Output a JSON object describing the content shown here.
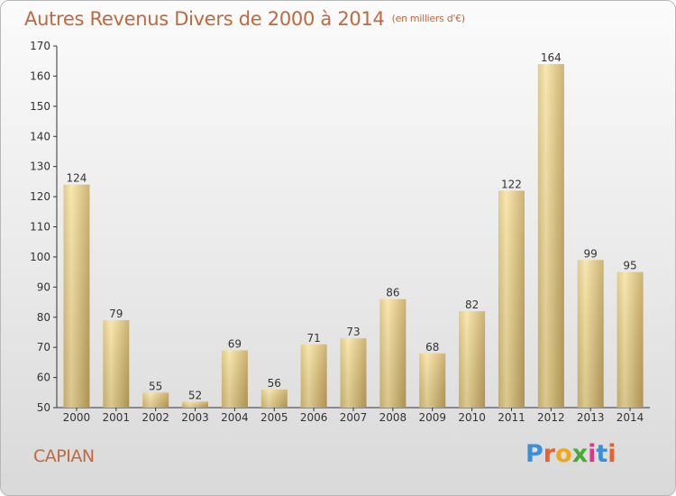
{
  "header": {
    "title": "Autres Revenus Divers de 2000 à 2014",
    "unit": "(en milliers d'€)"
  },
  "footer": {
    "location": "CAPIAN",
    "logo_text": "Proxiti",
    "logo_colors": [
      "#3a8fd6",
      "#e8622a",
      "#f0a818",
      "#4aa83a",
      "#d83a8a",
      "#3a8fd6",
      "#e8622a"
    ]
  },
  "colors": {
    "title": "#c0683e",
    "bar_light": "#f6df9a",
    "bar_dark": "#c9ab62",
    "axis": "#333333"
  },
  "chart_data": {
    "type": "bar",
    "title": "Autres Revenus Divers de 2000 à 2014",
    "subtitle": "(en milliers d'€)",
    "xlabel": "",
    "ylabel": "",
    "categories": [
      "2000",
      "2001",
      "2002",
      "2003",
      "2004",
      "2005",
      "2006",
      "2007",
      "2008",
      "2009",
      "2010",
      "2011",
      "2012",
      "2013",
      "2014"
    ],
    "values": [
      124,
      79,
      55,
      52,
      69,
      56,
      71,
      73,
      86,
      68,
      82,
      122,
      164,
      99,
      95
    ],
    "ylim": [
      50,
      170
    ],
    "yticks": [
      50,
      60,
      70,
      80,
      90,
      100,
      110,
      120,
      130,
      140,
      150,
      160,
      170
    ],
    "grid": false,
    "data_labels": true
  }
}
